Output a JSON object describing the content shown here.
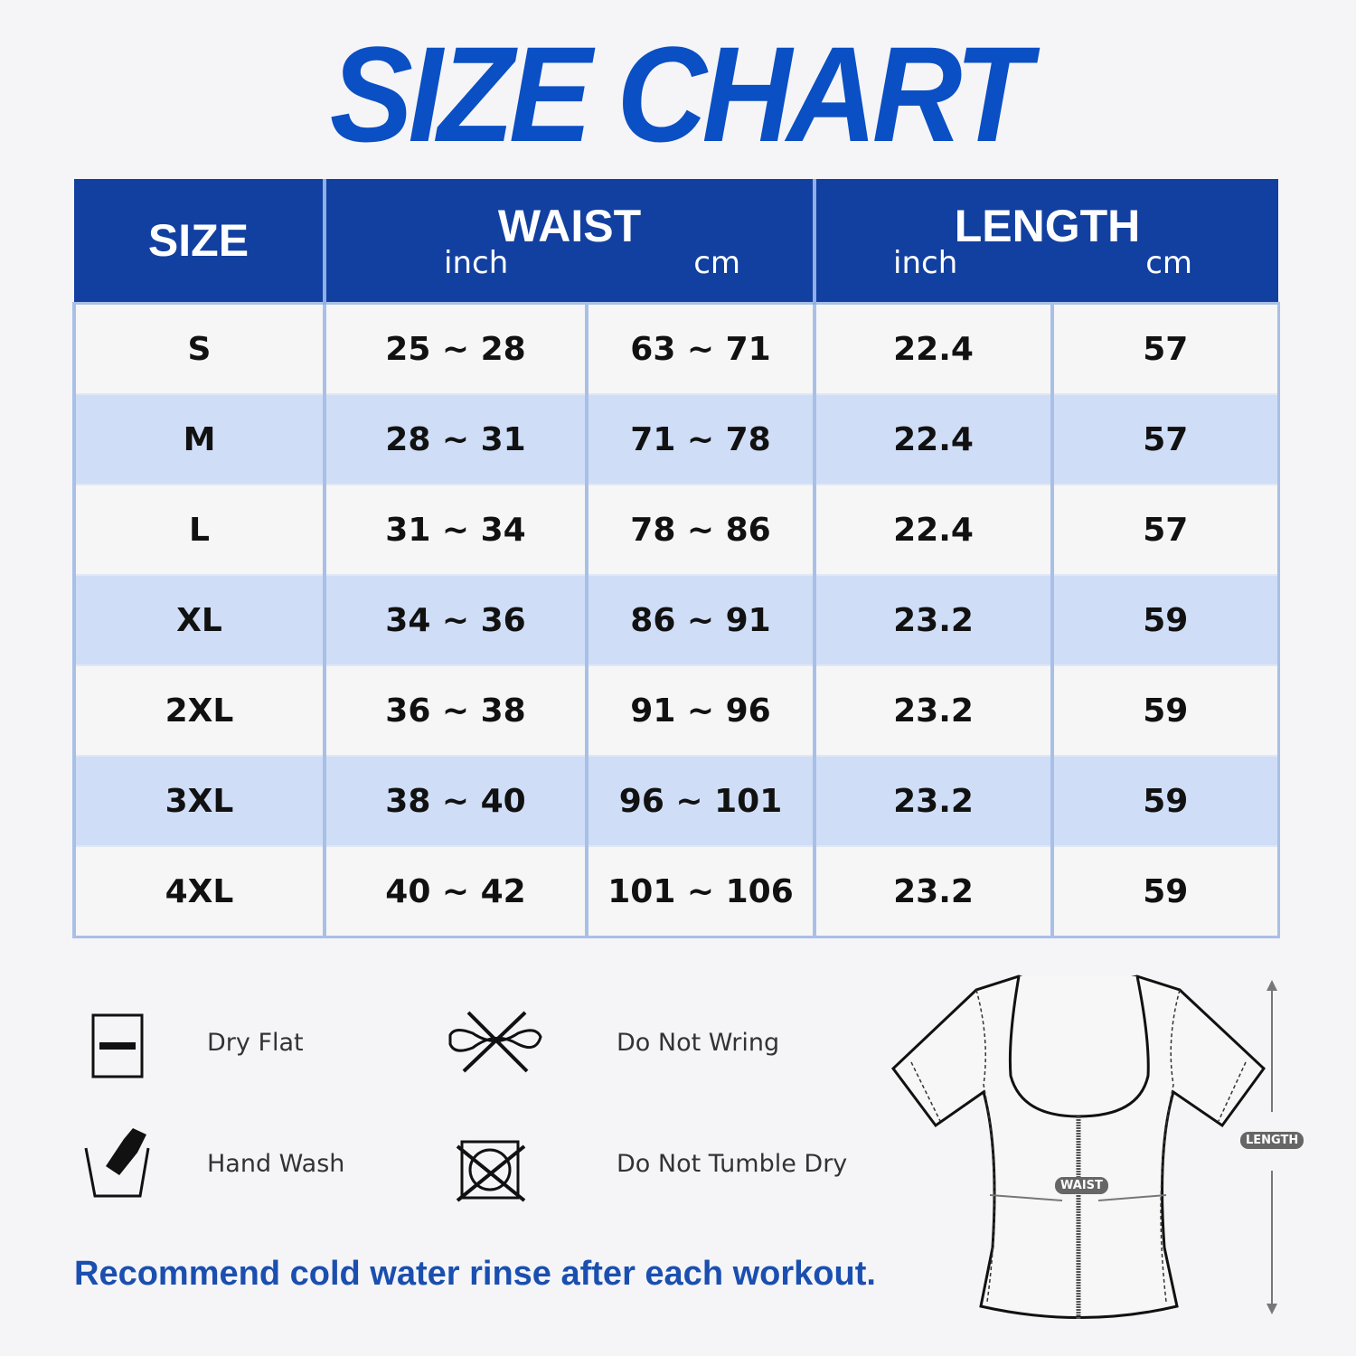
{
  "title": "SIZE CHART",
  "table": {
    "headers": {
      "size": "SIZE",
      "waist": "WAIST",
      "length": "LENGTH",
      "inch": "inch",
      "cm": "cm"
    },
    "rows": [
      {
        "size": "S",
        "waist_inch": "25 ~ 28",
        "waist_cm": "63 ~ 71",
        "length_inch": "22.4",
        "length_cm": "57"
      },
      {
        "size": "M",
        "waist_inch": "28 ~ 31",
        "waist_cm": "71 ~ 78",
        "length_inch": "22.4",
        "length_cm": "57"
      },
      {
        "size": "L",
        "waist_inch": "31 ~ 34",
        "waist_cm": "78 ~ 86",
        "length_inch": "22.4",
        "length_cm": "57"
      },
      {
        "size": "XL",
        "waist_inch": "34 ~ 36",
        "waist_cm": "86 ~ 91",
        "length_inch": "23.2",
        "length_cm": "59"
      },
      {
        "size": "2XL",
        "waist_inch": "36 ~ 38",
        "waist_cm": "91 ~ 96",
        "length_inch": "23.2",
        "length_cm": "59"
      },
      {
        "size": "3XL",
        "waist_inch": "38 ~ 40",
        "waist_cm": "96 ~ 101",
        "length_inch": "23.2",
        "length_cm": "59"
      },
      {
        "size": "4XL",
        "waist_inch": "40 ~ 42",
        "waist_cm": "101 ~ 106",
        "length_inch": "23.2",
        "length_cm": "59"
      }
    ]
  },
  "care": [
    {
      "icon": "dry-flat-icon",
      "label": "Dry Flat"
    },
    {
      "icon": "do-not-wring-icon",
      "label": "Do Not Wring"
    },
    {
      "icon": "hand-wash-icon",
      "label": "Hand Wash"
    },
    {
      "icon": "do-not-tumble-dry-icon",
      "label": "Do Not Tumble Dry"
    }
  ],
  "note": "Recommend cold water rinse after each workout.",
  "diagram": {
    "waist_label": "WAIST",
    "length_label": "LENGTH"
  },
  "colors": {
    "brand_blue": "#1240a0",
    "title_blue": "#0a4fc4",
    "row_alt": "#cfddf7"
  }
}
